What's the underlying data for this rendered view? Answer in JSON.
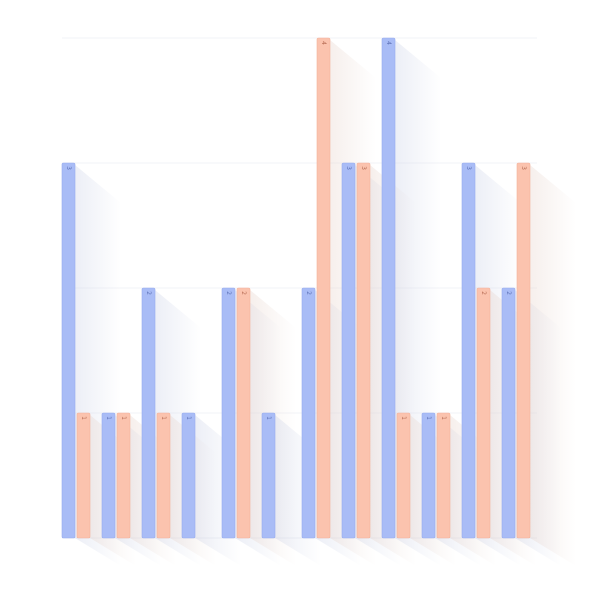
{
  "chart_data": {
    "type": "bar",
    "categories": [
      "",
      "",
      "",
      "",
      "",
      "",
      "",
      "",
      "",
      "",
      "",
      "",
      ""
    ],
    "series": [
      {
        "values": [
          3,
          1,
          2,
          1,
          2,
          1,
          2,
          3,
          4,
          1,
          3,
          2,
          null
        ],
        "color": "#a9bcf6"
      },
      {
        "values": [
          1,
          1,
          1,
          null,
          2,
          null,
          4,
          3,
          1,
          1,
          2,
          3,
          null
        ],
        "color": "#fbc3ae"
      }
    ],
    "ylim": [
      0,
      4
    ],
    "grid": true,
    "legend": "none"
  }
}
